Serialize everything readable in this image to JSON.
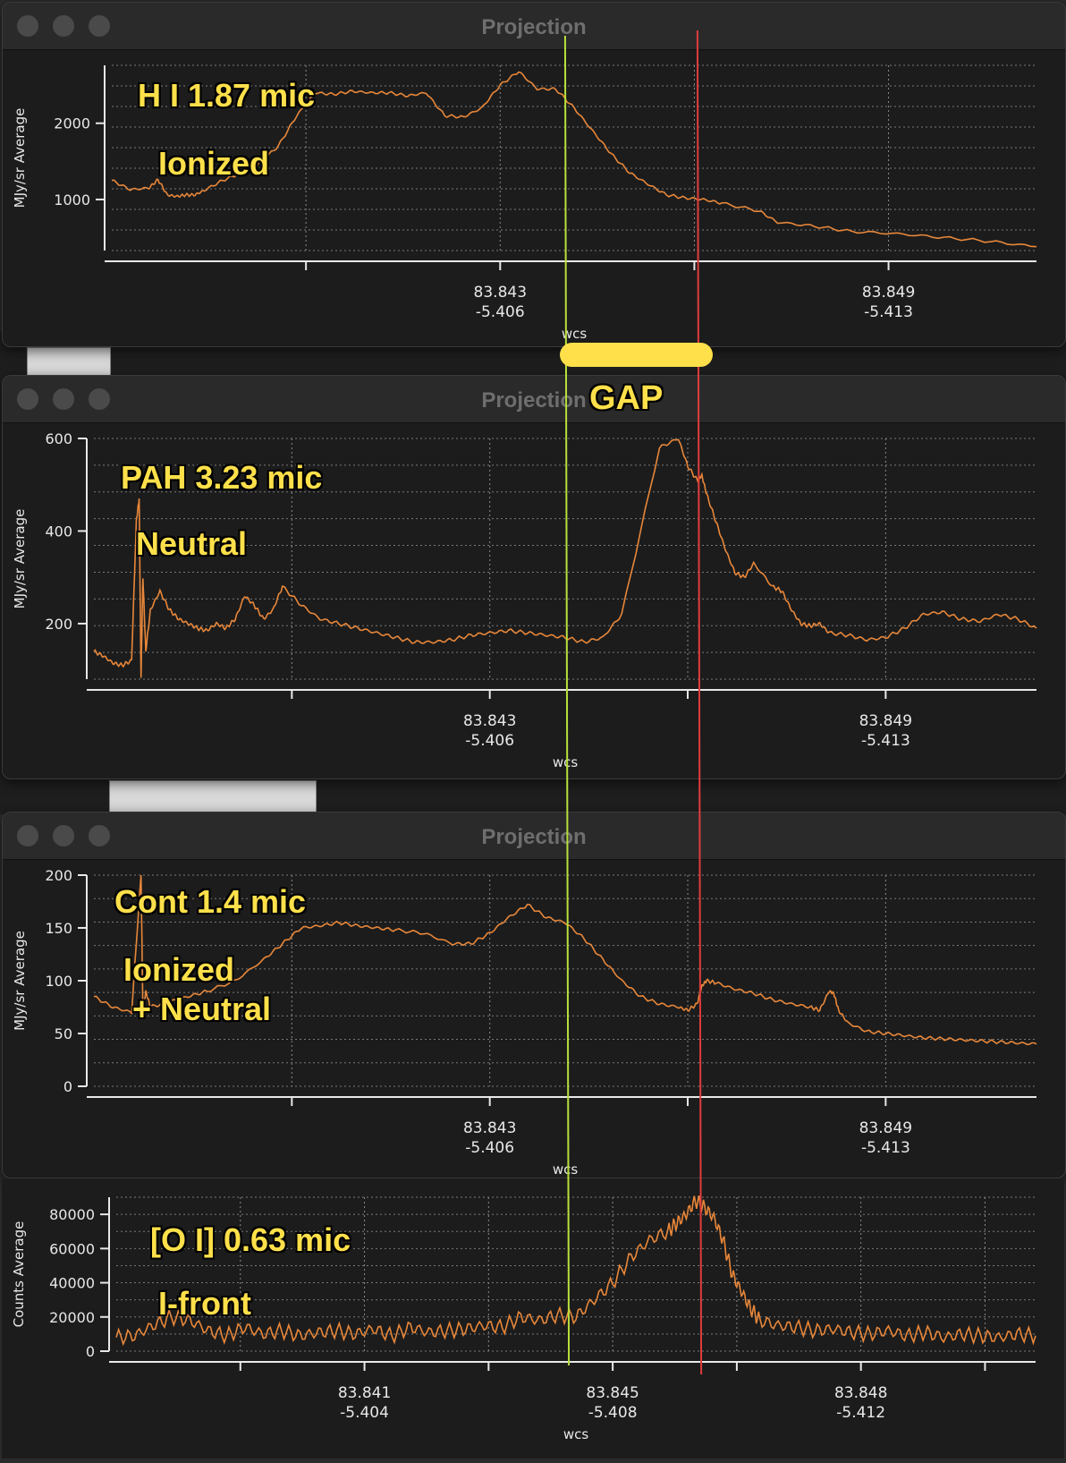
{
  "windows": [
    {
      "title": "Projection"
    },
    {
      "title": "Projection"
    },
    {
      "title": "Projection"
    }
  ],
  "annotations": {
    "gap": "GAP",
    "panel1": [
      "H I 1.87 mic",
      "Ionized"
    ],
    "panel2": [
      "PAH 3.23 mic",
      "Neutral"
    ],
    "panel3": [
      "Cont 1.4 mic",
      "Ionized\n + Neutral"
    ],
    "panel4": [
      "[O I] 0.63 mic",
      "I-front"
    ]
  },
  "colors": {
    "line": "#e8873a",
    "marker_green": "#b8e03c",
    "marker_red": "#e03c3c",
    "annotation": "#ffe04a"
  },
  "chart_data": [
    {
      "type": "line",
      "ylabel": "MJy/sr Average",
      "xlabel": "wcs",
      "yticks": [
        1000,
        2000
      ],
      "xtick_labels": [
        [
          "83.843",
          "-5.406"
        ],
        [
          "83.849",
          "-5.413"
        ]
      ],
      "ylim": [
        330,
        2760
      ],
      "series": [
        {
          "x": [
            0,
            0.02,
            0.04,
            0.05,
            0.06,
            0.07,
            0.08,
            0.09,
            0.1,
            0.12,
            0.14,
            0.16,
            0.18,
            0.2,
            0.22,
            0.24,
            0.26,
            0.28,
            0.3,
            0.32,
            0.34,
            0.36,
            0.38,
            0.4,
            0.42,
            0.44,
            0.46,
            0.48,
            0.5,
            0.52,
            0.54,
            0.56,
            0.58,
            0.6,
            0.62,
            0.64,
            0.66,
            0.7,
            0.72,
            0.76,
            0.8,
            0.85,
            0.9,
            0.95,
            1.0
          ],
          "values": [
            1250,
            1130,
            1150,
            1260,
            1060,
            1040,
            1060,
            1060,
            1120,
            1250,
            1350,
            1480,
            1700,
            2100,
            2400,
            2380,
            2420,
            2400,
            2400,
            2360,
            2400,
            2100,
            2080,
            2200,
            2500,
            2680,
            2450,
            2450,
            2200,
            1900,
            1600,
            1350,
            1200,
            1060,
            1020,
            1000,
            950,
            850,
            700,
            650,
            580,
            550,
            500,
            450,
            380
          ]
        }
      ]
    },
    {
      "type": "line",
      "ylabel": "MJy/sr Average",
      "xlabel": "wcs",
      "yticks": [
        200,
        400,
        600
      ],
      "xtick_labels": [
        [
          "83.843",
          "-5.406"
        ],
        [
          "83.849",
          "-5.413"
        ]
      ],
      "ylim": [
        80,
        600
      ],
      "series": [
        {
          "x": [
            0,
            0.01,
            0.02,
            0.03,
            0.04,
            0.045,
            0.048,
            0.05,
            0.052,
            0.055,
            0.06,
            0.07,
            0.08,
            0.09,
            0.1,
            0.11,
            0.12,
            0.13,
            0.14,
            0.15,
            0.16,
            0.17,
            0.18,
            0.19,
            0.2,
            0.22,
            0.24,
            0.26,
            0.28,
            0.3,
            0.32,
            0.34,
            0.36,
            0.38,
            0.4,
            0.42,
            0.44,
            0.46,
            0.48,
            0.5,
            0.52,
            0.54,
            0.56,
            0.6,
            0.62,
            0.63,
            0.64,
            0.645,
            0.65,
            0.66,
            0.67,
            0.68,
            0.69,
            0.7,
            0.72,
            0.73,
            0.74,
            0.75,
            0.76,
            0.77,
            0.78,
            0.8,
            0.82,
            0.84,
            0.86,
            0.88,
            0.9,
            0.92,
            0.94,
            0.96,
            0.98,
            1.0
          ],
          "values": [
            140,
            130,
            115,
            110,
            120,
            420,
            470,
            85,
            300,
            140,
            230,
            270,
            230,
            210,
            200,
            190,
            185,
            200,
            190,
            210,
            260,
            240,
            210,
            230,
            280,
            240,
            210,
            200,
            190,
            180,
            170,
            160,
            160,
            165,
            175,
            180,
            185,
            180,
            175,
            170,
            160,
            170,
            220,
            580,
            600,
            540,
            510,
            520,
            480,
            420,
            360,
            310,
            300,
            330,
            280,
            270,
            230,
            200,
            195,
            200,
            180,
            175,
            165,
            170,
            190,
            220,
            225,
            210,
            205,
            220,
            210,
            190
          ]
        }
      ]
    },
    {
      "type": "line",
      "ylabel": "MJy/sr Average",
      "xlabel": "wcs",
      "yticks": [
        0,
        50,
        100,
        150,
        200
      ],
      "xtick_labels": [
        [
          "83.843",
          "-5.406"
        ],
        [
          "83.849",
          "-5.413"
        ]
      ],
      "ylim": [
        0,
        200
      ],
      "series": [
        {
          "x": [
            0,
            0.02,
            0.04,
            0.05,
            0.052,
            0.055,
            0.06,
            0.08,
            0.1,
            0.12,
            0.15,
            0.18,
            0.2,
            0.22,
            0.24,
            0.26,
            0.28,
            0.3,
            0.32,
            0.35,
            0.38,
            0.4,
            0.42,
            0.44,
            0.46,
            0.48,
            0.5,
            0.52,
            0.54,
            0.56,
            0.58,
            0.6,
            0.62,
            0.63,
            0.64,
            0.645,
            0.65,
            0.66,
            0.68,
            0.7,
            0.72,
            0.74,
            0.76,
            0.77,
            0.78,
            0.785,
            0.79,
            0.8,
            0.82,
            0.84,
            0.86,
            0.88,
            0.9,
            0.92,
            0.94,
            0.96,
            0.98,
            1.0
          ],
          "values": [
            85,
            75,
            70,
            200,
            70,
            90,
            75,
            80,
            85,
            90,
            100,
            120,
            135,
            150,
            152,
            155,
            152,
            150,
            148,
            145,
            135,
            135,
            145,
            160,
            172,
            160,
            155,
            140,
            120,
            100,
            85,
            78,
            75,
            72,
            78,
            95,
            100,
            98,
            92,
            88,
            82,
            78,
            75,
            72,
            90,
            88,
            72,
            60,
            52,
            50,
            48,
            46,
            45,
            44,
            43,
            42,
            41,
            40
          ]
        }
      ]
    },
    {
      "type": "line",
      "ylabel": "Counts Average",
      "xlabel": "wcs",
      "yticks": [
        0,
        20000,
        40000,
        60000,
        80000
      ],
      "xtick_labels": [
        [
          "83.841",
          "-5.404"
        ],
        [
          "83.845",
          "-5.408"
        ],
        [
          "83.848",
          "-5.412"
        ]
      ],
      "ylim": [
        0,
        90000
      ],
      "series": [
        {
          "x": [
            0,
            0.02,
            0.04,
            0.06,
            0.08,
            0.1,
            0.12,
            0.14,
            0.16,
            0.18,
            0.2,
            0.22,
            0.24,
            0.26,
            0.28,
            0.3,
            0.32,
            0.34,
            0.36,
            0.38,
            0.4,
            0.42,
            0.44,
            0.46,
            0.48,
            0.5,
            0.52,
            0.54,
            0.56,
            0.58,
            0.6,
            0.61,
            0.62,
            0.63,
            0.64,
            0.65,
            0.66,
            0.67,
            0.68,
            0.69,
            0.7,
            0.72,
            0.74,
            0.76,
            0.78,
            0.8,
            0.82,
            0.84,
            0.86,
            0.88,
            0.9,
            0.92,
            0.94,
            0.96,
            0.98,
            1.0
          ],
          "values": [
            8000,
            9000,
            15000,
            20000,
            18000,
            12000,
            9000,
            14000,
            10000,
            12000,
            9000,
            11000,
            12000,
            10000,
            13000,
            9000,
            14000,
            11000,
            12000,
            13000,
            15000,
            14000,
            20000,
            18000,
            21000,
            20000,
            30000,
            40000,
            55000,
            65000,
            70000,
            75000,
            80000,
            88000,
            84000,
            78000,
            65000,
            45000,
            35000,
            25000,
            18000,
            15000,
            14000,
            12000,
            13000,
            11000,
            10000,
            12000,
            9000,
            11000,
            8000,
            10000,
            9000,
            8000,
            10000,
            9000
          ]
        }
      ]
    }
  ]
}
